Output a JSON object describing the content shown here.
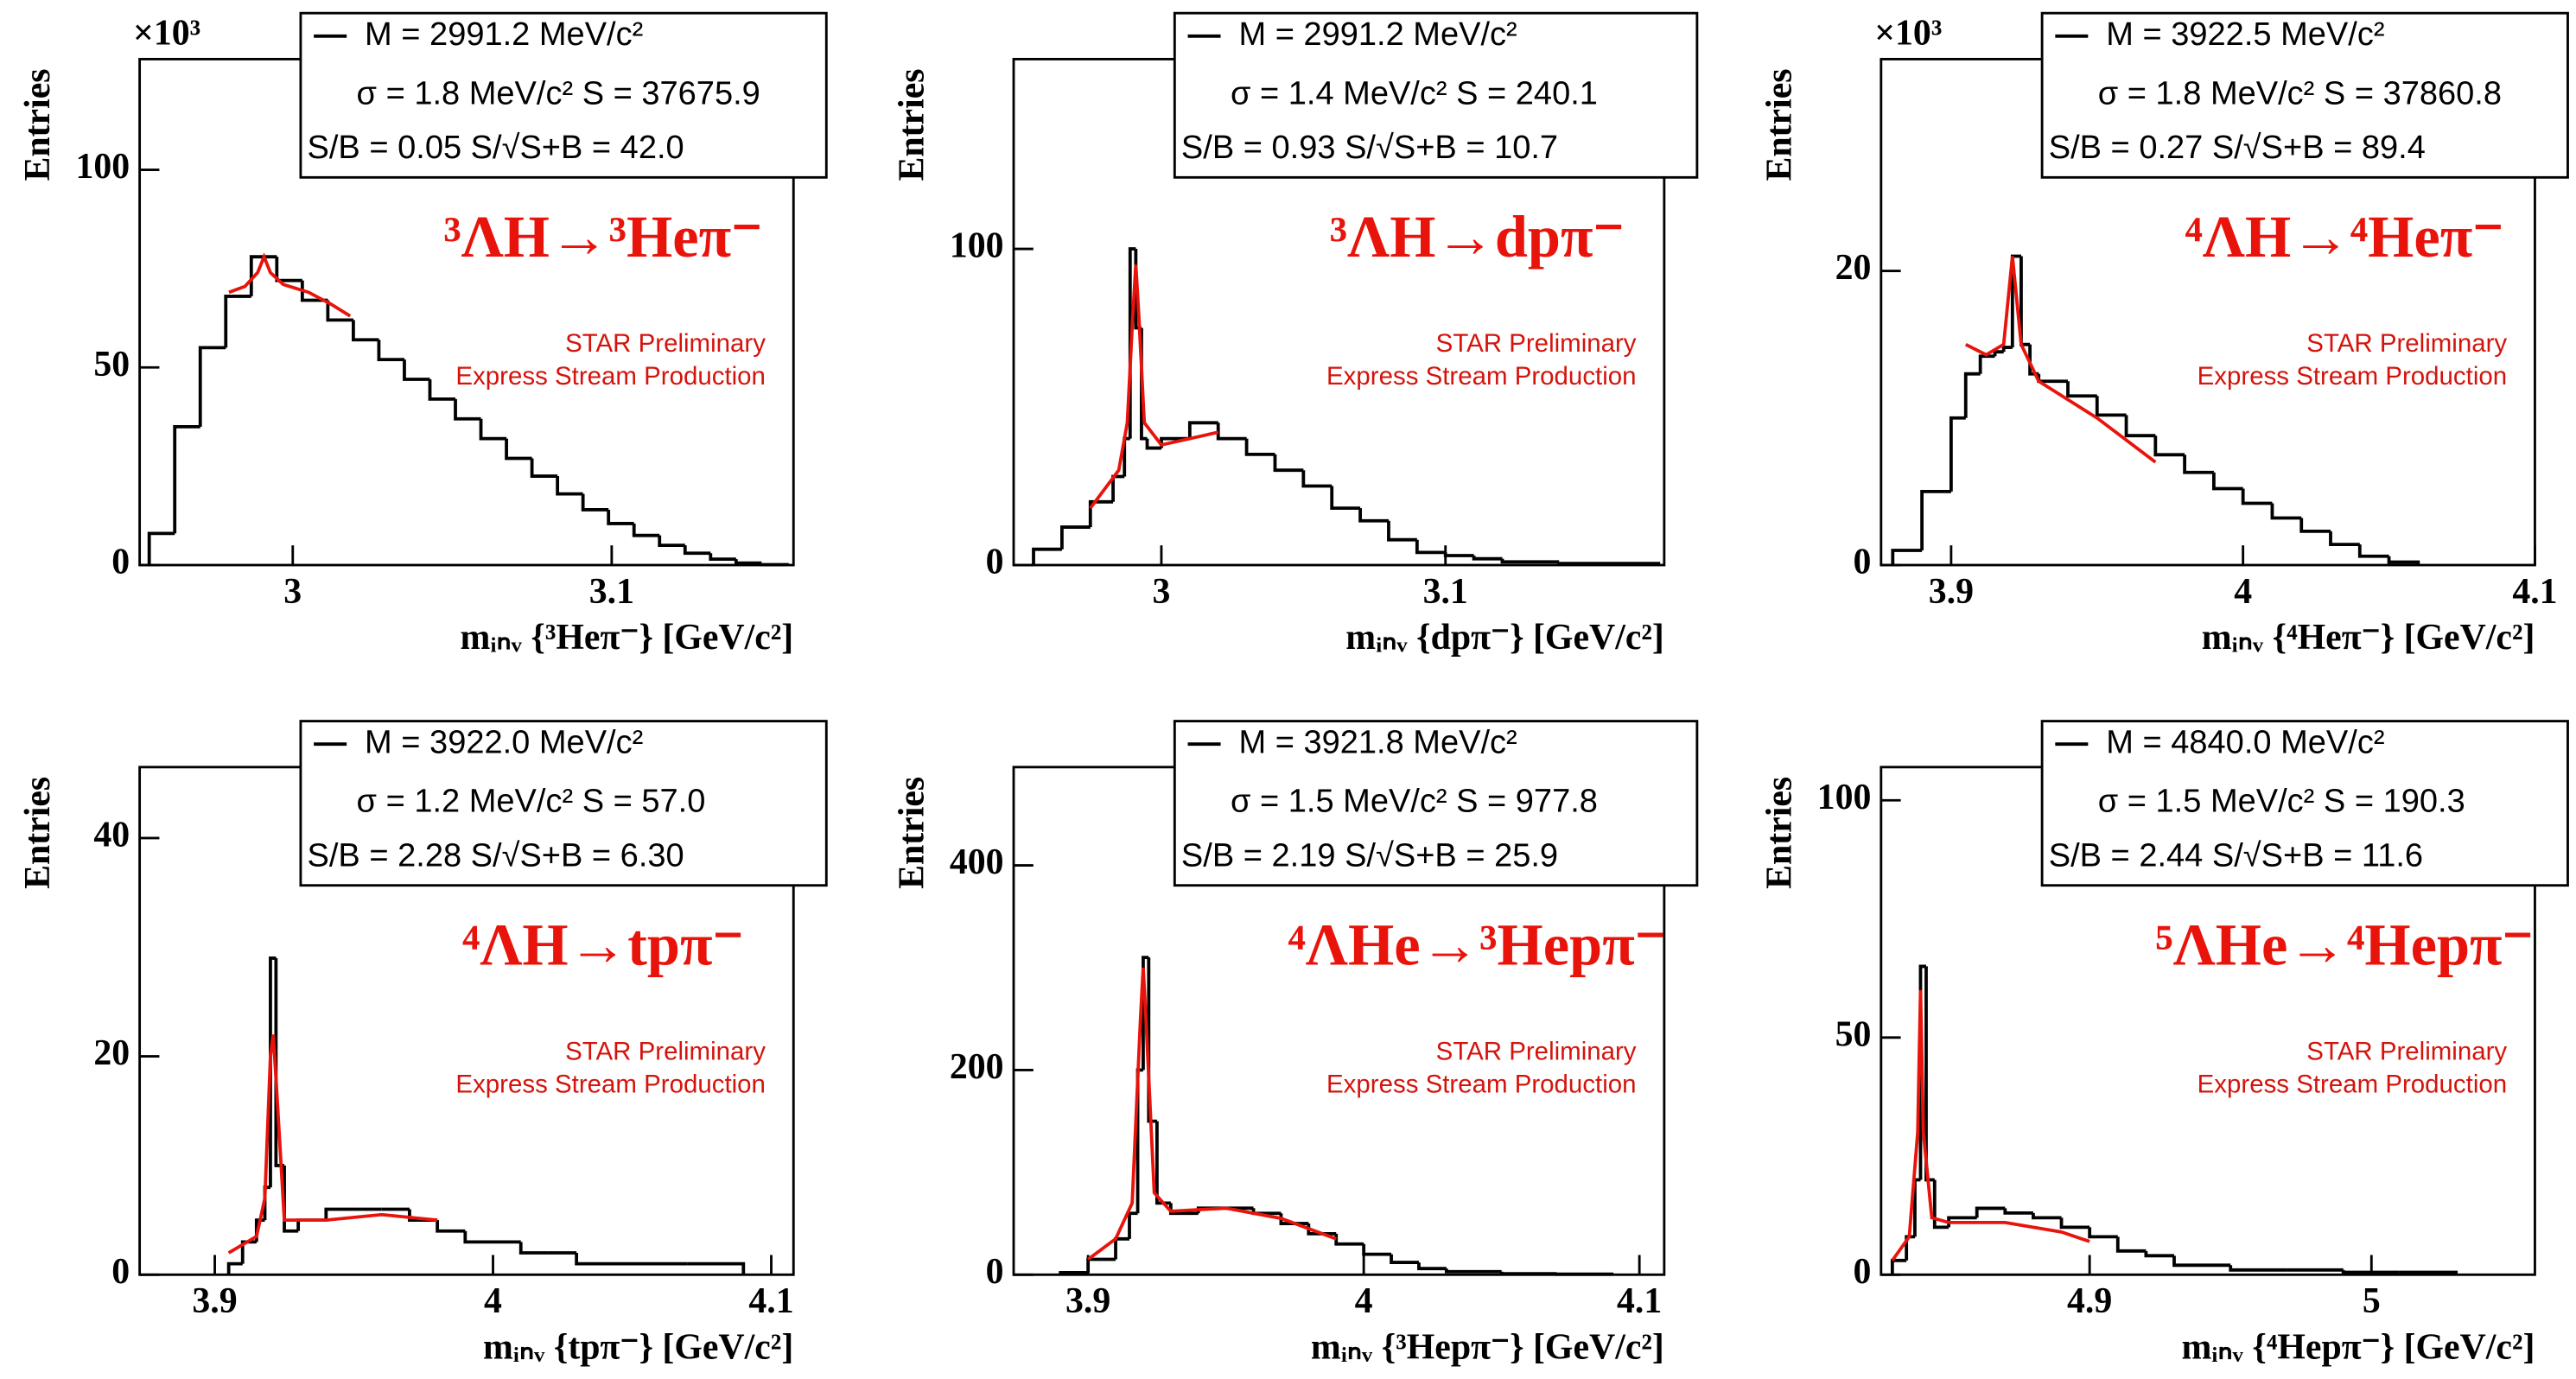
{
  "chart_data": [
    {
      "type": "histogram",
      "title": "³ΛH→³Heπ⁻",
      "xlabel": "mᵢₙᵥ {³Heπ⁻} [GeV/c²]",
      "ylabel": "Entries",
      "multiplier": "×10³",
      "stats": [
        "σ = 1.8 MeV/c²  S = 37675.9",
        "S/B = 0.05  S/√S+B = 42.0"
      ],
      "annotations": [
        "STAR Preliminary",
        "Express Stream Production"
      ],
      "xlim": [
        2.952,
        3.157
      ],
      "xticks": [
        3,
        3.1
      ],
      "ylim": [
        0,
        128
      ],
      "yticks": [
        0,
        50,
        100
      ],
      "bins": [
        2.955,
        2.963,
        2.971,
        2.979,
        2.987,
        2.995,
        3.003,
        3.011,
        3.019,
        3.027,
        3.035,
        3.043,
        3.051,
        3.059,
        3.067,
        3.075,
        3.083,
        3.091,
        3.099,
        3.107,
        3.115,
        3.123,
        3.131,
        3.139,
        3.147,
        3.155
      ],
      "series": [
        {
          "name": "M = 2991.2 MeV/c²",
          "color": "#000000",
          "values": [
            8,
            35,
            55,
            68,
            78,
            72,
            67,
            62,
            57,
            52,
            47,
            42,
            37,
            32,
            27,
            22.5,
            18,
            14,
            10.5,
            7.5,
            5,
            3,
            1.5,
            0.5,
            0.1
          ]
        },
        {
          "color": "#e8140c",
          "x": [
            2.98,
            2.985,
            2.989,
            2.991,
            2.993,
            2.997,
            3.005,
            3.012,
            3.018
          ],
          "values": [
            69,
            70.5,
            74,
            78,
            74,
            71,
            69,
            66,
            63
          ]
        }
      ]
    },
    {
      "type": "histogram",
      "title": "³ΛH→dpπ⁻",
      "xlabel": "mᵢₙᵥ {dpπ⁻} [GeV/c²]",
      "ylabel": "Entries",
      "stats": [
        "σ = 1.4 MeV/c²  S = 240.1",
        "S/B = 0.93  S/√S+B = 10.7"
      ],
      "annotations": [
        "STAR Preliminary",
        "Express Stream Production"
      ],
      "xlim": [
        2.948,
        3.177
      ],
      "xticks": [
        3,
        3.1
      ],
      "ylim": [
        0,
        160
      ],
      "yticks": [
        0,
        100
      ],
      "bins": [
        2.955,
        2.965,
        2.975,
        2.983,
        2.987,
        2.989,
        2.991,
        2.993,
        2.995,
        3.0,
        3.01,
        3.02,
        3.03,
        3.04,
        3.05,
        3.06,
        3.07,
        3.08,
        3.09,
        3.1,
        3.11,
        3.12,
        3.14,
        3.175
      ],
      "series": [
        {
          "name": "M = 2991.2 MeV/c²",
          "color": "#000000",
          "values": [
            5,
            12,
            20,
            28,
            40,
            100,
            75,
            40,
            37,
            40,
            45,
            40,
            35,
            30,
            25,
            18,
            14,
            8,
            4,
            3,
            2,
            1,
            0.5
          ]
        },
        {
          "color": "#e8140c",
          "x": [
            2.975,
            2.985,
            2.988,
            2.99,
            2.991,
            2.992,
            2.994,
            3.0,
            3.01,
            3.02
          ],
          "values": [
            18,
            30,
            45,
            80,
            95,
            80,
            45,
            38,
            40,
            42
          ]
        }
      ]
    },
    {
      "type": "histogram",
      "title": "⁴ΛH→⁴Heπ⁻",
      "xlabel": "mᵢₙᵥ {⁴Heπ⁻} [GeV/c²]",
      "ylabel": "Entries",
      "multiplier": "×10³",
      "stats": [
        "σ = 1.8 MeV/c²  S = 37860.8",
        "S/B = 0.27  S/√S+B = 89.4"
      ],
      "annotations": [
        "STAR Preliminary",
        "Express Stream Production"
      ],
      "xlim": [
        3.876,
        4.1
      ],
      "xticks": [
        3.9,
        4,
        4.1
      ],
      "ylim": [
        0,
        34.4
      ],
      "yticks": [
        0,
        20
      ],
      "bins": [
        3.88,
        3.89,
        3.9,
        3.905,
        3.91,
        3.915,
        3.918,
        3.921,
        3.924,
        3.927,
        3.93,
        3.94,
        3.95,
        3.96,
        3.97,
        3.98,
        3.99,
        4.0,
        4.01,
        4.02,
        4.03,
        4.04,
        4.05,
        4.06
      ],
      "series": [
        {
          "name": "M = 3922.5 MeV/c²",
          "color": "#000000",
          "values": [
            1,
            5,
            10,
            13,
            14.2,
            14.5,
            14.8,
            21,
            15,
            13,
            12.5,
            11.5,
            10.2,
            8.8,
            7.5,
            6.3,
            5.2,
            4.2,
            3.2,
            2.3,
            1.4,
            0.6,
            0.2
          ]
        },
        {
          "color": "#e8140c",
          "x": [
            3.905,
            3.912,
            3.918,
            3.92,
            3.921,
            3.922,
            3.924,
            3.93,
            3.95,
            3.97
          ],
          "values": [
            15,
            14.3,
            15,
            19,
            21,
            19,
            15,
            12.5,
            10,
            7
          ]
        }
      ]
    },
    {
      "type": "histogram",
      "title": "⁴ΛH→tpπ⁻",
      "xlabel": "mᵢₙᵥ {tpπ⁻} [GeV/c²]",
      "ylabel": "Entries",
      "stats": [
        "σ = 1.2 MeV/c²  S = 57.0",
        "S/B = 2.28  S/√S+B = 6.30"
      ],
      "annotations": [
        "STAR Preliminary",
        "Express Stream Production"
      ],
      "xlim": [
        3.873,
        4.108
      ],
      "xticks": [
        3.9,
        4,
        4.1
      ],
      "ylim": [
        0,
        46.5
      ],
      "yticks": [
        0,
        20,
        40
      ],
      "bins": [
        3.905,
        3.91,
        3.915,
        3.918,
        3.92,
        3.922,
        3.925,
        3.93,
        3.94,
        3.95,
        3.96,
        3.97,
        3.98,
        3.99,
        4.0,
        4.01,
        4.02,
        4.03,
        4.05,
        4.07,
        4.09
      ],
      "series": [
        {
          "name": "M = 3922.0 MeV/c²",
          "color": "#000000",
          "values": [
            1,
            3,
            5,
            8,
            29,
            10,
            4,
            5,
            6,
            6,
            6,
            5,
            4,
            3,
            3,
            2,
            2,
            1,
            1,
            1
          ]
        },
        {
          "color": "#e8140c",
          "x": [
            3.905,
            3.915,
            3.918,
            3.92,
            3.921,
            3.922,
            3.925,
            3.94,
            3.96,
            3.98
          ],
          "values": [
            2,
            3.5,
            7,
            20,
            22,
            18,
            5,
            5,
            5.5,
            5
          ]
        }
      ]
    },
    {
      "type": "histogram",
      "title": "⁴ΛHe→³Hepπ⁻",
      "xlabel": "mᵢₙᵥ {³Hepπ⁻} [GeV/c²]",
      "ylabel": "Entries",
      "stats": [
        "σ = 1.5 MeV/c²  S = 977.8",
        "S/B = 2.19  S/√S+B = 25.9"
      ],
      "annotations": [
        "STAR Preliminary",
        "Express Stream Production"
      ],
      "xlim": [
        3.873,
        4.109
      ],
      "xticks": [
        3.9,
        4,
        4.1
      ],
      "ylim": [
        0,
        496
      ],
      "yticks": [
        0,
        200,
        400
      ],
      "bins": [
        3.89,
        3.9,
        3.91,
        3.915,
        3.918,
        3.92,
        3.922,
        3.925,
        3.93,
        3.94,
        3.95,
        3.96,
        3.97,
        3.98,
        3.99,
        4.0,
        4.01,
        4.02,
        4.03,
        4.05,
        4.07,
        4.09
      ],
      "series": [
        {
          "name": "M = 3921.8 MeV/c²",
          "color": "#000000",
          "values": [
            2,
            15,
            35,
            60,
            200,
            310,
            150,
            70,
            60,
            65,
            65,
            60,
            50,
            40,
            30,
            20,
            12,
            6,
            3,
            1,
            0.5
          ]
        },
        {
          "color": "#e8140c",
          "x": [
            3.9,
            3.91,
            3.916,
            3.919,
            3.92,
            3.921,
            3.924,
            3.93,
            3.95,
            3.97,
            3.99
          ],
          "values": [
            15,
            35,
            70,
            250,
            300,
            250,
            80,
            62,
            65,
            55,
            35
          ]
        }
      ]
    },
    {
      "type": "histogram",
      "title": "⁵ΛHe→⁴Hepπ⁻",
      "xlabel": "mᵢₙᵥ {⁴Hepπ⁻} [GeV/c²]",
      "ylabel": "Entries",
      "stats": [
        "σ = 1.5 MeV/c²  S = 190.3",
        "S/B = 2.44  S/√S+B = 11.6"
      ],
      "annotations": [
        "STAR Preliminary",
        "Express Stream Production"
      ],
      "xlim": [
        4.826,
        5.058
      ],
      "xticks": [
        4.9,
        5
      ],
      "ylim": [
        0,
        107
      ],
      "yticks": [
        0,
        50,
        100
      ],
      "bins": [
        4.83,
        4.835,
        4.838,
        4.84,
        4.842,
        4.845,
        4.85,
        4.86,
        4.87,
        4.88,
        4.89,
        4.9,
        4.91,
        4.92,
        4.93,
        4.95,
        4.97,
        4.99,
        5.01,
        5.03
      ],
      "series": [
        {
          "name": "M = 4840.0 MeV/c²",
          "color": "#000000",
          "values": [
            3,
            8,
            20,
            65,
            20,
            10,
            12,
            14,
            13,
            12,
            10,
            8,
            5,
            4,
            2,
            1,
            1,
            0.5,
            0.5
          ]
        },
        {
          "color": "#e8140c",
          "x": [
            4.83,
            4.836,
            4.839,
            4.84,
            4.841,
            4.844,
            4.85,
            4.87,
            4.89,
            4.9
          ],
          "values": [
            3,
            8,
            30,
            60,
            30,
            12,
            11,
            11,
            9,
            7
          ]
        }
      ]
    }
  ]
}
